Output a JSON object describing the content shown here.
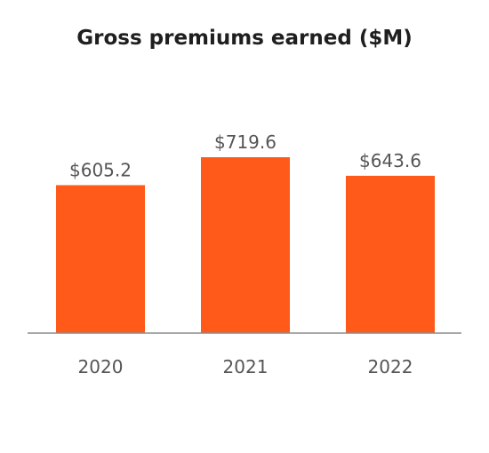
{
  "chart_data": {
    "type": "bar",
    "title": "Gross premiums earned ($M)",
    "categories": [
      "2020",
      "2021",
      "2022"
    ],
    "values": [
      605.2,
      719.6,
      643.6
    ],
    "value_labels": [
      "$605.2",
      "$719.6",
      "$643.6"
    ],
    "xlabel": "",
    "ylabel": "",
    "ylim": [
      0,
      800
    ],
    "grid": false,
    "bar_color": "#ff5a1a",
    "axis_color": "#8c8c8c"
  }
}
